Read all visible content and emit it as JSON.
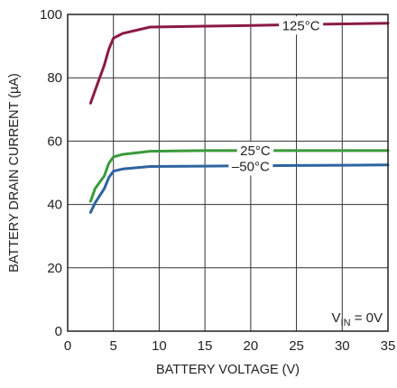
{
  "chart_data": {
    "type": "line",
    "xlabel": "BATTERY VOLTAGE (V)",
    "ylabel": "BATTERY DRAIN CURRENT (µA)",
    "xlim": [
      0,
      35
    ],
    "ylim": [
      0,
      100
    ],
    "xticks": [
      "0",
      "5",
      "10",
      "15",
      "20",
      "25",
      "30",
      "35"
    ],
    "yticks": [
      "0",
      "20",
      "40",
      "60",
      "80",
      "100"
    ],
    "grid": true,
    "annotation": {
      "main": "V",
      "sub": "IN",
      "rest": " = 0V"
    },
    "series": [
      {
        "name": "125°C",
        "color": "#8b1a46",
        "x": [
          2.5,
          3,
          4,
          4.5,
          5,
          6,
          9,
          15,
          20,
          25,
          30,
          35
        ],
        "y": [
          72,
          76,
          84,
          89,
          92.5,
          94,
          96,
          96.3,
          96.5,
          96.8,
          97,
          97.2
        ]
      },
      {
        "name": "25°C",
        "color": "#3a9a3a",
        "x": [
          2.5,
          3,
          4,
          4.5,
          5,
          6,
          9,
          15,
          20,
          25,
          30,
          35
        ],
        "y": [
          41,
          45,
          49,
          53,
          55,
          55.8,
          56.8,
          57,
          57,
          57,
          57,
          57
        ]
      },
      {
        "name": "–50°C",
        "color": "#2e64a0",
        "x": [
          2.5,
          3,
          4,
          4.5,
          5,
          6,
          9,
          15,
          20,
          25,
          30,
          35
        ],
        "y": [
          37.5,
          40.5,
          45,
          48.5,
          50.5,
          51.2,
          52,
          52.1,
          52.2,
          52.3,
          52.4,
          52.5
        ]
      }
    ],
    "series_labels": [
      {
        "text": "125°C",
        "x": 25.5,
        "y": 96.5
      },
      {
        "text": "25°C",
        "x": 20.5,
        "y": 57
      },
      {
        "text": "–50°C",
        "x": 20,
        "y": 52
      }
    ]
  }
}
